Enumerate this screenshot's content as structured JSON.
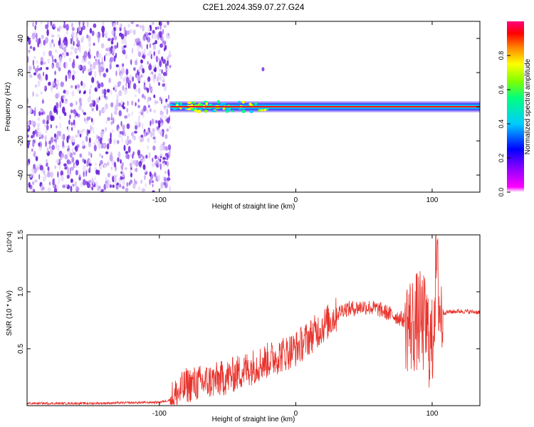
{
  "title": "C2E1.2024.359.07.27.G24",
  "chart_data": [
    {
      "type": "heatmap",
      "title": "C2E1.2024.359.07.27.G24",
      "xlabel": "Height of straight line (km)",
      "ylabel": "Frequency (Hz)",
      "xlim": [
        -197,
        135
      ],
      "ylim": [
        -50,
        50
      ],
      "x_ticks": [
        -100,
        0,
        100
      ],
      "y_ticks": [
        -40,
        -20,
        0,
        20,
        40
      ],
      "x_tick_labels": [
        "-100",
        "0",
        "100"
      ],
      "y_tick_labels": [
        "-40",
        "-20",
        "0",
        "20",
        "40"
      ],
      "noise_region_x": [
        -197,
        -92
      ],
      "signal_line_frequency": 0,
      "colorbar": {
        "label": "Normalized spectral amplitude",
        "range": [
          0,
          1
        ],
        "ticks": [
          0,
          0.2,
          0.4,
          0.6,
          0.8
        ],
        "tick_labels": [
          "0.0",
          "0.2",
          "0.4",
          "0.6",
          "0.8"
        ],
        "colormap": [
          "#ffffff",
          "#ff00ff",
          "#8000ff",
          "#0000ff",
          "#00ccff",
          "#00ff80",
          "#80ff00",
          "#ffff00",
          "#ff8000",
          "#ff0000",
          "#ff00a0"
        ]
      }
    },
    {
      "type": "line",
      "xlabel": "Height of straight line (km)",
      "ylabel": "SNR (10 * v/v)",
      "y_multiplier": "(x10^4)",
      "xlim": [
        -197,
        135
      ],
      "ylim": [
        0,
        1.5
      ],
      "x_ticks": [
        -100,
        0,
        100
      ],
      "y_ticks": [
        0.5,
        1.0,
        1.5
      ],
      "x_tick_labels": [
        "-100",
        "0",
        "100"
      ],
      "y_tick_labels": [
        "0.5",
        "1.0",
        "1.5"
      ],
      "color": "#e8312a",
      "series": [
        {
          "x": [
            -197,
            -150,
            -100,
            -92,
            -85,
            -80,
            -70,
            -60,
            -50,
            -40,
            -30,
            -20,
            -10,
            0,
            10,
            20,
            30,
            35,
            40,
            50,
            60,
            70,
            80,
            85,
            90,
            95,
            100,
            103,
            106,
            110,
            120,
            135
          ],
          "y": [
            0.02,
            0.02,
            0.03,
            0.05,
            0.12,
            0.18,
            0.2,
            0.22,
            0.25,
            0.3,
            0.35,
            0.4,
            0.45,
            0.5,
            0.6,
            0.7,
            0.8,
            0.85,
            0.85,
            0.87,
            0.85,
            0.8,
            0.75,
            0.7,
            0.75,
            0.7,
            0.5,
            1.25,
            0.8,
            0.82,
            0.83,
            0.82
          ]
        }
      ]
    }
  ],
  "colors": {
    "signal": "#e8312a",
    "axis": "#000000",
    "background": "#ffffff"
  }
}
